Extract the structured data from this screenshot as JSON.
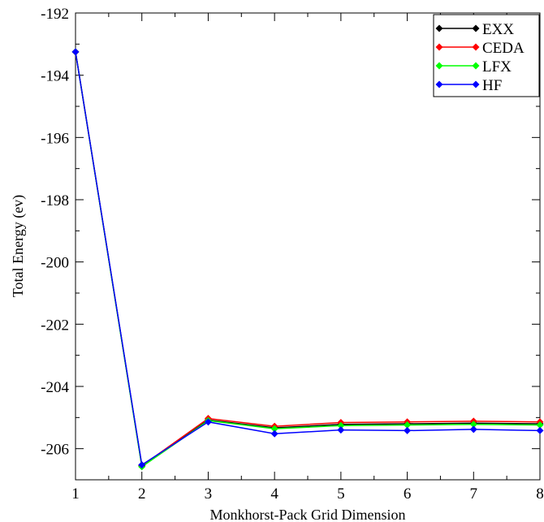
{
  "chart_data": {
    "type": "line",
    "xlabel": "Monkhorst-Pack Grid Dimension",
    "ylabel": "Total Energy (ev)",
    "xlim": [
      1,
      8
    ],
    "ylim": [
      -207,
      -192
    ],
    "xticks": [
      1,
      2,
      3,
      4,
      5,
      6,
      7,
      8
    ],
    "yticks": [
      -206,
      -204,
      -202,
      -200,
      -198,
      -196,
      -194,
      -192
    ],
    "grid": false,
    "legend_position": "top-right",
    "x": [
      1,
      2,
      3,
      4,
      5,
      6,
      7,
      8
    ],
    "series": [
      {
        "name": "EXX",
        "color": "#000000",
        "values": [
          -193.25,
          -206.55,
          -205.08,
          -205.33,
          -205.22,
          -205.2,
          -205.18,
          -205.2
        ]
      },
      {
        "name": "CEDA",
        "color": "#ff0000",
        "values": [
          -193.25,
          -206.55,
          -205.03,
          -205.28,
          -205.16,
          -205.14,
          -205.12,
          -205.14
        ]
      },
      {
        "name": "LFX",
        "color": "#00ff00",
        "values": [
          -193.25,
          -206.58,
          -205.1,
          -205.36,
          -205.26,
          -205.24,
          -205.22,
          -205.24
        ]
      },
      {
        "name": "HF",
        "color": "#0000ff",
        "values": [
          -193.25,
          -206.52,
          -205.14,
          -205.52,
          -205.4,
          -205.42,
          -205.38,
          -205.42
        ]
      }
    ]
  }
}
